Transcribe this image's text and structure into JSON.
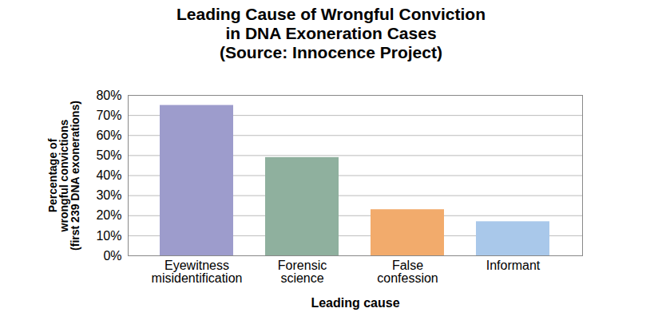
{
  "chart_data": {
    "type": "bar",
    "title": "Leading Cause of Wrongful Conviction\nin DNA Exoneration Cases\n(Source: Innocence Project)",
    "x_label": "Leading cause",
    "y_label": "Percentage of\nwrongful convictions\n(first 239 DNA exonerations)",
    "categories": [
      "Eyewitness\nmisidentification",
      "Forensic\nscience",
      "False\nconfession",
      "Informant"
    ],
    "values": [
      75,
      49,
      23,
      17
    ],
    "colors": [
      "#9d9ccc",
      "#8fb09e",
      "#f2ab6c",
      "#a9c8ea"
    ],
    "ylim": [
      0,
      80
    ],
    "yticks": [
      {
        "value": 0,
        "label": "0%"
      },
      {
        "value": 10,
        "label": "10%"
      },
      {
        "value": 20,
        "label": "20%"
      },
      {
        "value": 30,
        "label": "30%"
      },
      {
        "value": 40,
        "label": "40%"
      },
      {
        "value": 50,
        "label": "50%"
      },
      {
        "value": 60,
        "label": "60%"
      },
      {
        "value": 70,
        "label": "70%"
      },
      {
        "value": 80,
        "label": "80%"
      }
    ],
    "grid": true
  }
}
